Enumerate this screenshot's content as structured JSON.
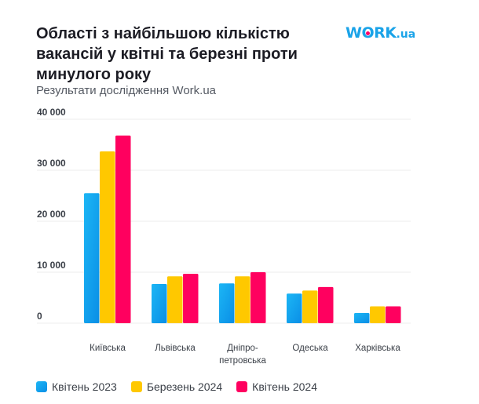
{
  "header": {
    "title": "Області з найбільшою кількістю вакансій у квітні та березні проти минулого року",
    "subtitle": "Результати дослідження Work.ua",
    "logo_text": "WORK.ua"
  },
  "colors": {
    "series": [
      "#12a4f0",
      "#ffc800",
      "#ff005f"
    ],
    "grid": "#ececec"
  },
  "chart_data": {
    "type": "bar",
    "title": "Області з найбільшою кількістю вакансій у квітні та березні проти минулого року",
    "subtitle": "Результати дослідження Work.ua",
    "xlabel": "",
    "ylabel": "",
    "ylim": [
      0,
      40000
    ],
    "yticks": [
      0,
      10000,
      20000,
      30000,
      40000
    ],
    "ytick_labels": [
      "0",
      "10 000",
      "20 000",
      "30 000",
      "40 000"
    ],
    "grid": true,
    "legend_position": "bottom-left",
    "categories": [
      "Київська",
      "Львівська",
      "Дніпро-петровська",
      "Одеська",
      "Харківська"
    ],
    "category_lines": [
      [
        "Київська"
      ],
      [
        "Львівська"
      ],
      [
        "Дніпро-",
        "петровська"
      ],
      [
        "Одеська"
      ],
      [
        "Харківська"
      ]
    ],
    "series": [
      {
        "name": "Квітень 2023",
        "values": [
          25500,
          7700,
          7800,
          5800,
          2000
        ]
      },
      {
        "name": "Березень 2024",
        "values": [
          33700,
          9200,
          9200,
          6400,
          3300
        ]
      },
      {
        "name": "Квітень 2024",
        "values": [
          36800,
          9700,
          10000,
          7100,
          3300
        ]
      }
    ]
  }
}
